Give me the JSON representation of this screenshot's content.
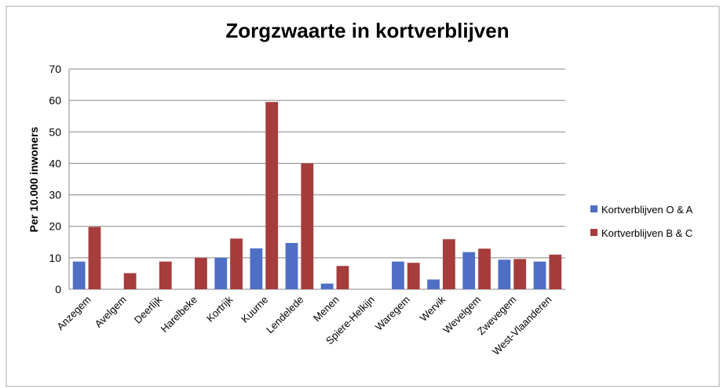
{
  "chart_data": {
    "type": "bar",
    "title": "Zorgzwaarte in kortverblijven",
    "y_label": "Per 10.000 inwoners",
    "categories": [
      "Anzegem",
      "Avelgem",
      "Deerlijk",
      "Harelbeke",
      "Kortrijk",
      "Kuurne",
      "Lendelede",
      "Menen",
      "Spiere-Helkijn",
      "Waregem",
      "Wervik",
      "Wevelgem",
      "Zwevegem",
      "West-Vlaanderen"
    ],
    "series": [
      {
        "name": "Kortverblijven O & A",
        "color": "#4f6fc6",
        "values": [
          8.8,
          0,
          0,
          0,
          10,
          13,
          14.7,
          1.8,
          0,
          8.8,
          3.1,
          11.8,
          9.4,
          8.8
        ]
      },
      {
        "name": "Kortverblijven B & C",
        "color": "#a63c3c",
        "values": [
          19.8,
          5.1,
          8.8,
          10,
          16.1,
          59.5,
          40,
          7.4,
          0,
          8.4,
          15.9,
          12.9,
          9.6,
          11
        ]
      }
    ],
    "ylim": [
      0,
      70
    ],
    "yticks": [
      0,
      10,
      20,
      30,
      40,
      50,
      60,
      70
    ],
    "grid": true,
    "legend": "right"
  }
}
